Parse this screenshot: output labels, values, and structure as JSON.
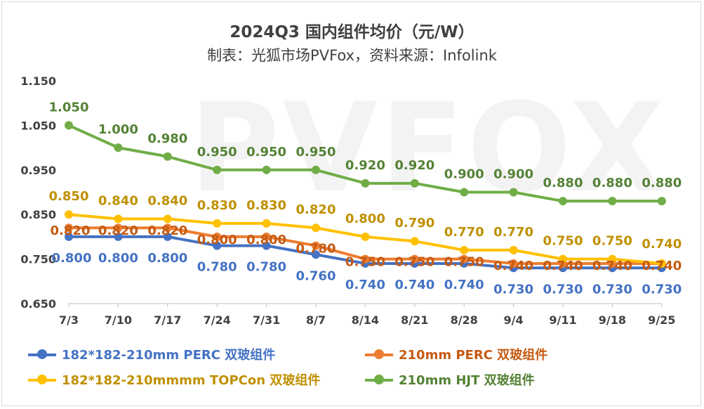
{
  "chart_data": {
    "type": "line",
    "title": "2024Q3 国内组件均价（元/W）",
    "subtitle": "制表：光狐市场PVFox，资料来源：Infolink",
    "watermark": "PVFOX",
    "x": [
      "7/3",
      "7/10",
      "7/17",
      "7/24",
      "7/31",
      "8/7",
      "8/14",
      "8/21",
      "8/28",
      "9/4",
      "9/11",
      "9/18",
      "9/25"
    ],
    "ylim": [
      0.65,
      1.15
    ],
    "yticks": [
      0.65,
      0.75,
      0.85,
      0.95,
      1.05,
      1.15
    ],
    "ytick_labels": [
      "0.650",
      "0.750",
      "0.850",
      "0.950",
      "1.050",
      "1.150"
    ],
    "grid": false,
    "legend_position": "bottom",
    "series": [
      {
        "name": "182*182-210mm PERC 双玻组件",
        "color": "#4472C4",
        "values": [
          0.8,
          0.8,
          0.8,
          0.78,
          0.78,
          0.76,
          0.74,
          0.74,
          0.74,
          0.73,
          0.73,
          0.73,
          0.73
        ],
        "labels": [
          "0.800",
          "0.800",
          "0.800",
          "0.780",
          "0.780",
          "0.760",
          "0.740",
          "0.740",
          "0.740",
          "0.730",
          "0.730",
          "0.730",
          "0.730"
        ]
      },
      {
        "name": "210mm PERC 双玻组件",
        "color": "#ED7D31",
        "values": [
          0.82,
          0.82,
          0.82,
          0.8,
          0.8,
          0.78,
          0.75,
          0.75,
          0.75,
          0.74,
          0.74,
          0.74,
          0.74
        ],
        "labels": [
          "0.820",
          "0.820",
          "0.820",
          "0.800",
          "0.800",
          "0.780",
          "0.750",
          "0.750",
          "0.750",
          "0.740",
          "0.740",
          "0.740",
          "0.740"
        ]
      },
      {
        "name": "182*182-210mmmm TOPCon 双玻组件",
        "color": "#FFC000",
        "values": [
          0.85,
          0.84,
          0.84,
          0.83,
          0.83,
          0.82,
          0.8,
          0.79,
          0.77,
          0.77,
          0.75,
          0.75,
          0.74
        ],
        "labels": [
          "0.850",
          "0.840",
          "0.840",
          "0.830",
          "0.830",
          "0.820",
          "0.800",
          "0.790",
          "0.770",
          "0.770",
          "0.750",
          "0.750",
          "0.740"
        ]
      },
      {
        "name": "210mm HJT 双玻组件",
        "color": "#70AD47",
        "values": [
          1.05,
          1.0,
          0.98,
          0.95,
          0.95,
          0.95,
          0.92,
          0.92,
          0.9,
          0.9,
          0.88,
          0.88,
          0.88
        ],
        "labels": [
          "1.050",
          "1.000",
          "0.980",
          "0.950",
          "0.950",
          "0.950",
          "0.920",
          "0.920",
          "0.900",
          "0.900",
          "0.880",
          "0.880",
          "0.880"
        ]
      }
    ],
    "label_colors": [
      "#4472C4",
      "#C55A11",
      "#BF9000",
      "#548235"
    ]
  }
}
